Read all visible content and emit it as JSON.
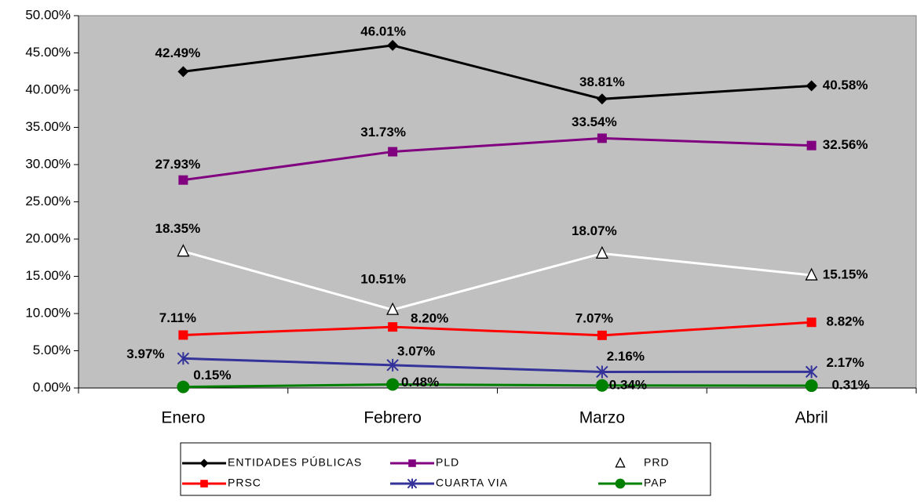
{
  "chart_data": {
    "type": "line",
    "categories": [
      "Enero",
      "Febrero",
      "Marzo",
      "Abril"
    ],
    "ylim": [
      0,
      50
    ],
    "yticks": [
      {
        "value": 0,
        "label": "0.00%"
      },
      {
        "value": 5,
        "label": "5.00%"
      },
      {
        "value": 10,
        "label": "10.00%"
      },
      {
        "value": 15,
        "label": "15.00%"
      },
      {
        "value": 20,
        "label": "20.00%"
      },
      {
        "value": 25,
        "label": "25.00%"
      },
      {
        "value": 30,
        "label": "30.00%"
      },
      {
        "value": 35,
        "label": "35.00%"
      },
      {
        "value": 40,
        "label": "40.00%"
      },
      {
        "value": 45,
        "label": "45.00%"
      },
      {
        "value": 50,
        "label": "50.00%"
      }
    ],
    "series": [
      {
        "name": "ENTIDADES PÚBLICAS",
        "color": "#000000",
        "values": [
          42.49,
          46.01,
          38.81,
          40.58
        ],
        "value_labels": [
          "42.49%",
          "46.01%",
          "38.81%",
          "40.58%"
        ]
      },
      {
        "name": "PLD",
        "color": "#800080",
        "values": [
          27.93,
          31.73,
          33.54,
          32.56
        ],
        "value_labels": [
          "27.93%",
          "31.73%",
          "33.54%",
          "32.56%"
        ]
      },
      {
        "name": "PRD",
        "color": "#ffffff",
        "values": [
          18.35,
          10.51,
          18.07,
          15.15
        ],
        "value_labels": [
          "18.35%",
          "10.51%",
          "18.07%",
          "15.15%"
        ]
      },
      {
        "name": "PRSC",
        "color": "#ff0000",
        "values": [
          7.11,
          8.2,
          7.07,
          8.82
        ],
        "value_labels": [
          "7.11%",
          "8.20%",
          "7.07%",
          "8.82%"
        ]
      },
      {
        "name": "CUARTA VIA",
        "color": "#333399",
        "values": [
          3.97,
          3.07,
          2.16,
          2.17
        ],
        "value_labels": [
          "3.97%",
          "3.07%",
          "2.16%",
          "2.17%"
        ]
      },
      {
        "name": "PAP",
        "color": "#008000",
        "values": [
          0.15,
          0.48,
          0.34,
          0.31
        ],
        "value_labels": [
          "0.15%",
          "0.48%",
          "0.34%",
          "0.31%"
        ]
      }
    ]
  }
}
